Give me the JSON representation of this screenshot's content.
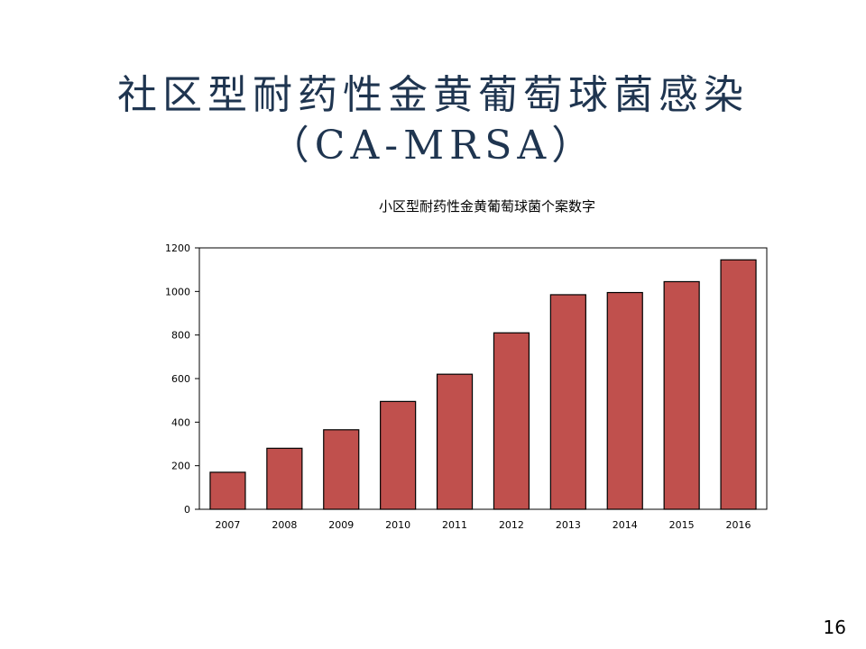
{
  "slide": {
    "title_line1": "社区型耐药性金黄葡萄球菌感染",
    "title_line2": "（CA-MRSA）",
    "page_number": "16"
  },
  "colors": {
    "title": "#1f3550",
    "bar_fill": "#c0504d",
    "bar_stroke": "#000000"
  },
  "chart_data": {
    "type": "bar",
    "title": "小区型耐药性金黄葡萄球菌个案数字",
    "xlabel": "",
    "ylabel": "",
    "categories": [
      "2007",
      "2008",
      "2009",
      "2010",
      "2011",
      "2012",
      "2013",
      "2014",
      "2015",
      "2016"
    ],
    "values": [
      170,
      280,
      365,
      495,
      620,
      810,
      985,
      995,
      1045,
      1145
    ],
    "ylim": [
      0,
      1200
    ],
    "yticks": [
      "0",
      "200",
      "400",
      "600",
      "800",
      "1000",
      "1200"
    ],
    "grid": false,
    "legend": "none"
  }
}
